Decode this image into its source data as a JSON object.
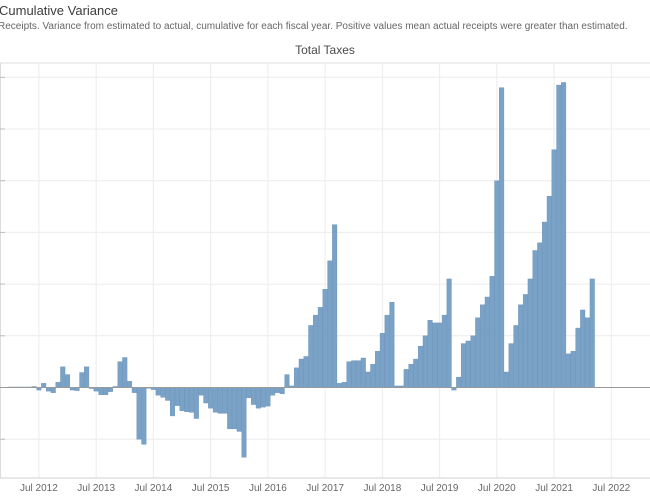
{
  "header": {
    "title": "Cumulative Variance",
    "subtitle": "Receipts. Variance from estimated to actual, cumulative for each fiscal year.  Positive values mean actual receipts were greater than estimated."
  },
  "colors": {
    "bar": "#7aa1c6",
    "bar_edge": "#6a92b9",
    "grid": "#ececec",
    "zero": "#9a9a9a"
  },
  "chart_data": {
    "type": "bar",
    "title": "Total Taxes",
    "xlabel": "",
    "ylabel": "",
    "ylim": [
      -16,
      61
    ],
    "grid": true,
    "x_tick_labels": [
      "Jul 2012",
      "Jul 2013",
      "Jul 2014",
      "Jul 2015",
      "Jul 2016",
      "Jul 2017",
      "Jul 2018",
      "Jul 2019",
      "Jul 2020",
      "Jul 2021",
      "Jul 2022"
    ],
    "series": [
      {
        "name": "Total Taxes",
        "x_start": "Jan 2012",
        "frequency": "monthly",
        "values": [
          0.1,
          0.1,
          0.1,
          0.1,
          0.1,
          0.2,
          -0.5,
          0.8,
          -0.7,
          -1.0,
          1.0,
          4.0,
          2.5,
          -0.5,
          -0.6,
          2.9,
          4.0,
          -0.2,
          -0.7,
          -1.4,
          -1.4,
          -0.8,
          0.2,
          5.0,
          5.8,
          1.2,
          -1.0,
          -10.0,
          -11.0,
          -0.1,
          -0.4,
          -1.5,
          -1.9,
          -2.5,
          -5.5,
          -3.5,
          -4.5,
          -4.7,
          -4.8,
          -6.0,
          -1.5,
          -3.0,
          -4.0,
          -4.8,
          -5.0,
          -5.0,
          -8.0,
          -8.0,
          -8.5,
          -13.5,
          -2.0,
          -3.3,
          -4.0,
          -3.8,
          -3.6,
          -1.5,
          -1.0,
          -1.2,
          2.5,
          0.3,
          3.8,
          5.5,
          6.0,
          12.0,
          14.0,
          15.5,
          19.0,
          24.5,
          31.5,
          0.8,
          1.0,
          5.0,
          5.2,
          5.2,
          5.7,
          3.0,
          4.5,
          7.0,
          10.5,
          14.0,
          16.5,
          0.3,
          0.3,
          3.5,
          4.5,
          5.5,
          8.0,
          10.0,
          13.0,
          12.5,
          12.5,
          14.0,
          21.0,
          -0.5,
          2.0,
          8.5,
          9.0,
          10.0,
          13.5,
          16.0,
          17.5,
          21.5,
          40.0,
          58.0,
          3.0,
          8.5,
          12.0,
          16.0,
          18.0,
          21.0,
          26.5,
          28.0,
          32.0,
          37.0,
          46.0,
          58.5,
          59.0,
          6.5,
          7.0,
          11.5,
          15.0,
          13.5,
          21.0
        ]
      }
    ]
  }
}
